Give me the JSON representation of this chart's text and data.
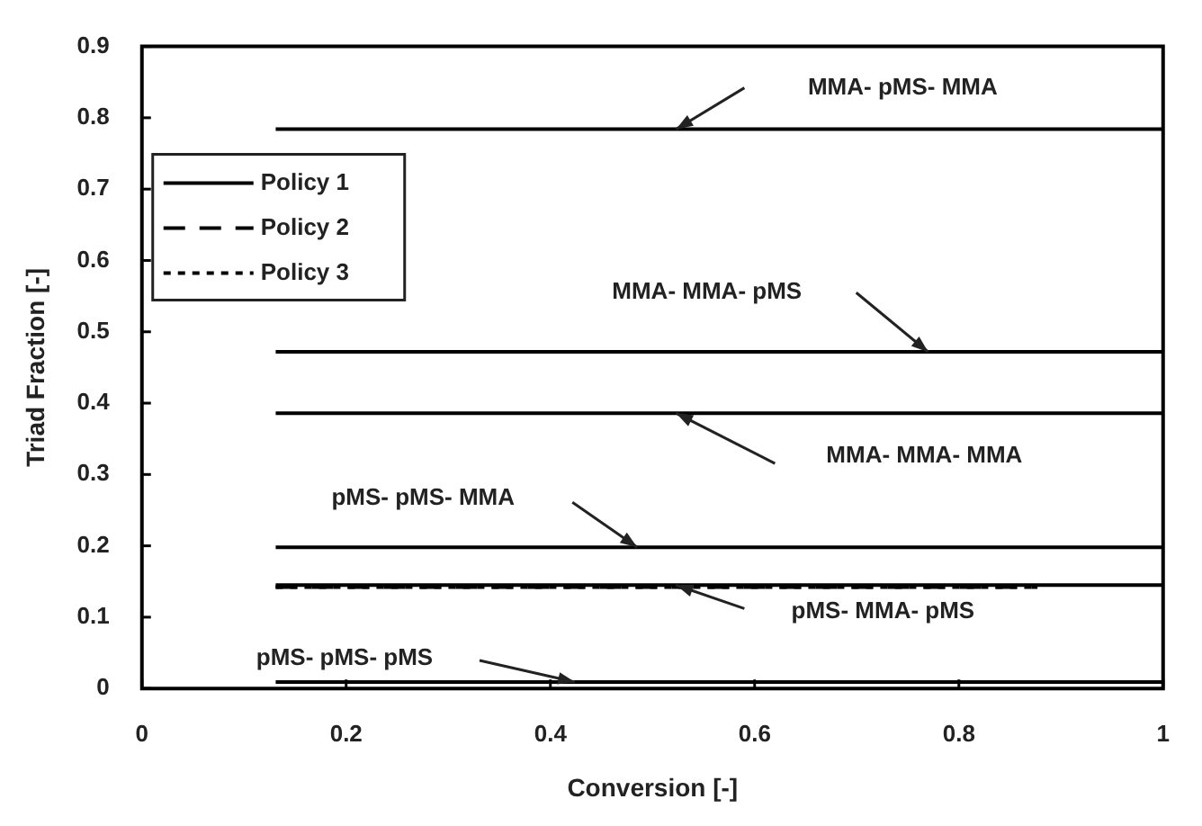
{
  "chart_data": {
    "type": "line",
    "xlabel": "Conversion [-]",
    "ylabel": "Triad Fraction [-]",
    "xlim": [
      0,
      1
    ],
    "xticks": [
      0,
      0.2,
      0.4,
      0.6,
      0.8,
      1
    ],
    "ylim": [
      0,
      0.9
    ],
    "yticks": [
      0,
      0.1,
      0.2,
      0.3,
      0.4,
      0.5,
      0.6,
      0.7,
      0.8,
      0.9
    ],
    "legend": "top left",
    "marker": "none",
    "series": [
      {
        "name": "Policy 2",
        "color": "#000000",
        "line_style": "dashed",
        "x": [
          0.131,
          0.877
        ],
        "values": [
          0.142,
          0.142
        ]
      },
      {
        "name": "Policy 3",
        "color": "#000000",
        "line_style": "dotted",
        "x": [
          0.131,
          0.877
        ],
        "values": [
          0.142,
          0.142
        ]
      },
      {
        "name": "Policy 1",
        "color": "#000000",
        "line_style": "solid",
        "x": [
          0.131,
          1
        ],
        "values": [
          0.784,
          0.784
        ]
      },
      {
        "color": "#000000",
        "line_style": "solid",
        "x": [
          0.131,
          1
        ],
        "values": [
          0.472,
          0.472
        ]
      },
      {
        "color": "#000000",
        "line_style": "solid",
        "x": [
          0.131,
          1
        ],
        "values": [
          0.386,
          0.386
        ]
      },
      {
        "color": "#000000",
        "line_style": "solid",
        "x": [
          0.131,
          1
        ],
        "values": [
          0.198,
          0.198
        ]
      },
      {
        "color": "#000000",
        "line_style": "solid",
        "x": [
          0.131,
          1
        ],
        "values": [
          0.145,
          0.145
        ]
      },
      {
        "color": "#000000",
        "line_style": "solid",
        "x": [
          0.131,
          1
        ],
        "values": [
          0.009,
          0.009
        ]
      }
    ],
    "annotations": [
      "MMA- pMS- MMA",
      "MMA- MMA- pMS",
      "MMA- MMA- MMA",
      "pMS- pMS- MMA",
      "pMS- MMA- pMS",
      "pMS- pMS- pMS"
    ]
  }
}
